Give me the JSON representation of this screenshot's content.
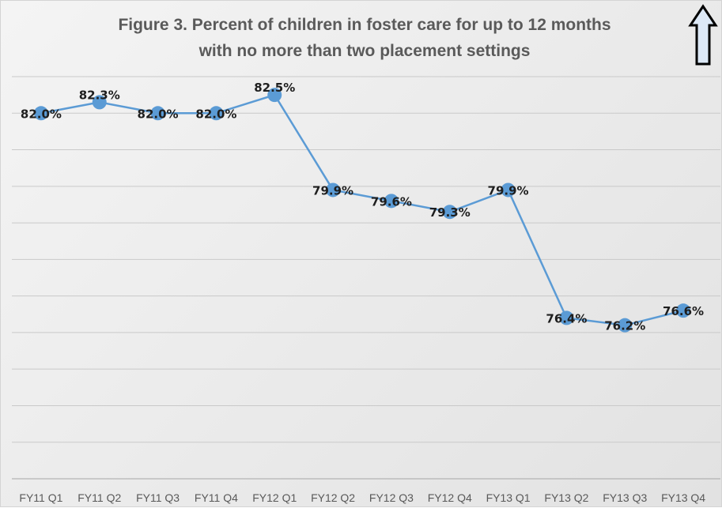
{
  "chart_data": {
    "type": "line",
    "title": "Figure 3. Percent of children in foster care for up to 12 months with no more than two placement settings",
    "title_lines": [
      "Figure 3. Percent of children in foster care for up to 12 months",
      "with no more than two placement settings"
    ],
    "categories": [
      "FY11 Q1",
      "FY11 Q2",
      "FY11 Q3",
      "FY11 Q4",
      "FY12 Q1",
      "FY12 Q2",
      "FY12 Q3",
      "FY12 Q4",
      "FY13 Q1",
      "FY13 Q2",
      "FY13 Q3",
      "FY13 Q4"
    ],
    "series": [
      {
        "values": [
          82.0,
          82.3,
          82.0,
          82.0,
          82.5,
          79.9,
          79.6,
          79.3,
          79.9,
          76.4,
          76.2,
          76.6
        ],
        "labels": [
          "82.0%",
          "82.3%",
          "82.0%",
          "82.0%",
          "82.5%",
          "79.9%",
          "79.6%",
          "79.3%",
          "79.9%",
          "76.4%",
          "76.2%",
          "76.6%"
        ],
        "color": "#5b9bd5"
      }
    ],
    "ylim": [
      72,
      83.5
    ],
    "gridlines": [
      83,
      82,
      81,
      80,
      79,
      78,
      77,
      76,
      75,
      74,
      73,
      72
    ],
    "xlabel": "",
    "ylabel": "",
    "y_ticks_shown": false,
    "grid": true,
    "legend": "none",
    "annotation": "up-arrow-icon (top-right): higher is better"
  },
  "colors": {
    "series": "#5b9bd5",
    "gridline": "#c9c9c9",
    "title": "#5a5a5a",
    "background": "#ebebeb"
  }
}
